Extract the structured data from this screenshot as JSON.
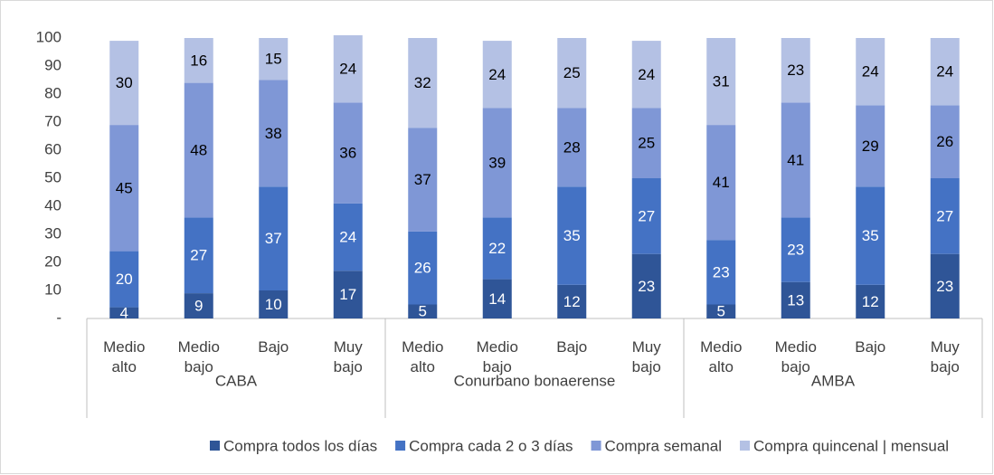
{
  "chart_data": {
    "type": "stacked_bar",
    "groups": [
      {
        "name": "CABA",
        "categories": [
          "Medio alto",
          "Medio bajo",
          "Bajo",
          "Muy bajo"
        ]
      },
      {
        "name": "Conurbano bonaerense",
        "categories": [
          "Medio alto",
          "Medio bajo",
          "Bajo",
          "Muy bajo"
        ]
      },
      {
        "name": "AMBA",
        "categories": [
          "Medio alto",
          "Medio bajo",
          "Bajo",
          "Muy bajo"
        ]
      }
    ],
    "series": [
      {
        "name": "Compra todos los días",
        "color": "#2f5597",
        "label_color": "#ffffff",
        "values": [
          4,
          9,
          10,
          17,
          5,
          14,
          12,
          23,
          5,
          13,
          12,
          23
        ]
      },
      {
        "name": "Compra cada 2 o 3 días",
        "color": "#4472c4",
        "label_color": "#ffffff",
        "values": [
          20,
          27,
          37,
          24,
          26,
          22,
          35,
          27,
          23,
          23,
          35,
          27
        ]
      },
      {
        "name": "Compra semanal",
        "color": "#7f97d6",
        "label_color": "#000000",
        "values": [
          45,
          48,
          38,
          36,
          37,
          39,
          28,
          25,
          41,
          41,
          29,
          26
        ]
      },
      {
        "name": "Compra quincenal | mensual",
        "color": "#b4c1e4",
        "label_color": "#000000",
        "values": [
          30,
          16,
          15,
          24,
          32,
          24,
          25,
          24,
          31,
          23,
          24,
          24
        ]
      }
    ],
    "ylim": [
      0,
      100
    ],
    "yticks": [
      {
        "value": 0,
        "label": "-"
      },
      10,
      20,
      30,
      40,
      50,
      60,
      70,
      80,
      90,
      100
    ],
    "legend": "bottom"
  }
}
